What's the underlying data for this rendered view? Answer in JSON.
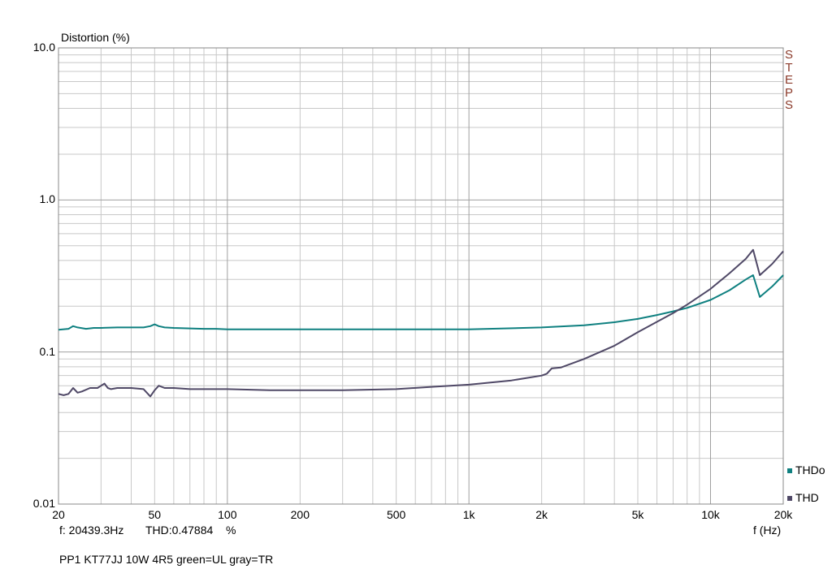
{
  "chart_data": {
    "type": "line",
    "title": "",
    "ylabel": "Distortion (%)",
    "xlabel": "f (Hz)",
    "x_scale": "log",
    "y_scale": "log",
    "xlim": [
      20,
      20000
    ],
    "ylim": [
      0.01,
      10
    ],
    "y_tick_labels": [
      "10.0",
      "1.0",
      "0.1",
      "0.01"
    ],
    "y_tick_values": [
      10,
      1,
      0.1,
      0.01
    ],
    "x_tick_labels": [
      "20",
      "50",
      "100",
      "200",
      "500",
      "1k",
      "2k",
      "5k",
      "10k",
      "20k"
    ],
    "x_tick_values": [
      20,
      50,
      100,
      200,
      500,
      1000,
      2000,
      5000,
      10000,
      20000
    ],
    "grid": true,
    "legend_position": "bottom-right",
    "series": [
      {
        "name": "THDo",
        "color": "#0f8080",
        "x": [
          20,
          22,
          23,
          24,
          26,
          28,
          30,
          35,
          40,
          45,
          48,
          50,
          52,
          55,
          60,
          70,
          80,
          90,
          100,
          200,
          500,
          1000,
          2000,
          3000,
          4000,
          5000,
          6000,
          7000,
          8000,
          10000,
          12000,
          14000,
          15000,
          16000,
          18000,
          20000
        ],
        "y": [
          0.14,
          0.142,
          0.148,
          0.145,
          0.142,
          0.144,
          0.144,
          0.145,
          0.145,
          0.145,
          0.148,
          0.152,
          0.148,
          0.145,
          0.144,
          0.143,
          0.142,
          0.142,
          0.141,
          0.141,
          0.141,
          0.141,
          0.145,
          0.15,
          0.157,
          0.165,
          0.175,
          0.185,
          0.195,
          0.22,
          0.255,
          0.3,
          0.32,
          0.23,
          0.27,
          0.32
        ]
      },
      {
        "name": "THD",
        "color": "#4f4866",
        "x": [
          20,
          21,
          22,
          23,
          24,
          25,
          27,
          29,
          30,
          31,
          32,
          33,
          35,
          40,
          45,
          48,
          50,
          52,
          55,
          60,
          70,
          80,
          100,
          150,
          200,
          300,
          500,
          700,
          1000,
          1500,
          2000,
          2100,
          2200,
          2400,
          3000,
          4000,
          5000,
          6000,
          7000,
          8000,
          10000,
          12000,
          14000,
          15000,
          16000,
          18000,
          20000
        ],
        "y": [
          0.053,
          0.052,
          0.053,
          0.058,
          0.054,
          0.055,
          0.058,
          0.058,
          0.06,
          0.062,
          0.058,
          0.057,
          0.058,
          0.058,
          0.057,
          0.051,
          0.056,
          0.06,
          0.058,
          0.058,
          0.057,
          0.057,
          0.057,
          0.056,
          0.056,
          0.056,
          0.057,
          0.059,
          0.061,
          0.065,
          0.07,
          0.072,
          0.078,
          0.079,
          0.09,
          0.11,
          0.135,
          0.158,
          0.18,
          0.205,
          0.26,
          0.33,
          0.41,
          0.47,
          0.32,
          0.38,
          0.46
        ]
      }
    ]
  },
  "readout": {
    "freq": "f: 20439.3Hz",
    "thd": "THD:0.47884",
    "unit": "%"
  },
  "side_label_letters": [
    "S",
    "T",
    "E",
    "P",
    "S"
  ],
  "caption": "PP1 KT77JJ 10W 4R5 green=UL gray=TR",
  "legend": [
    {
      "label": "THDo",
      "color": "#0f8080"
    },
    {
      "label": "THD",
      "color": "#4f4866"
    }
  ],
  "colors": {
    "grid": "#c8c8c8",
    "grid_major": "#a0a0a0",
    "frame": "#888888",
    "steps": "#8b3a2a"
  }
}
